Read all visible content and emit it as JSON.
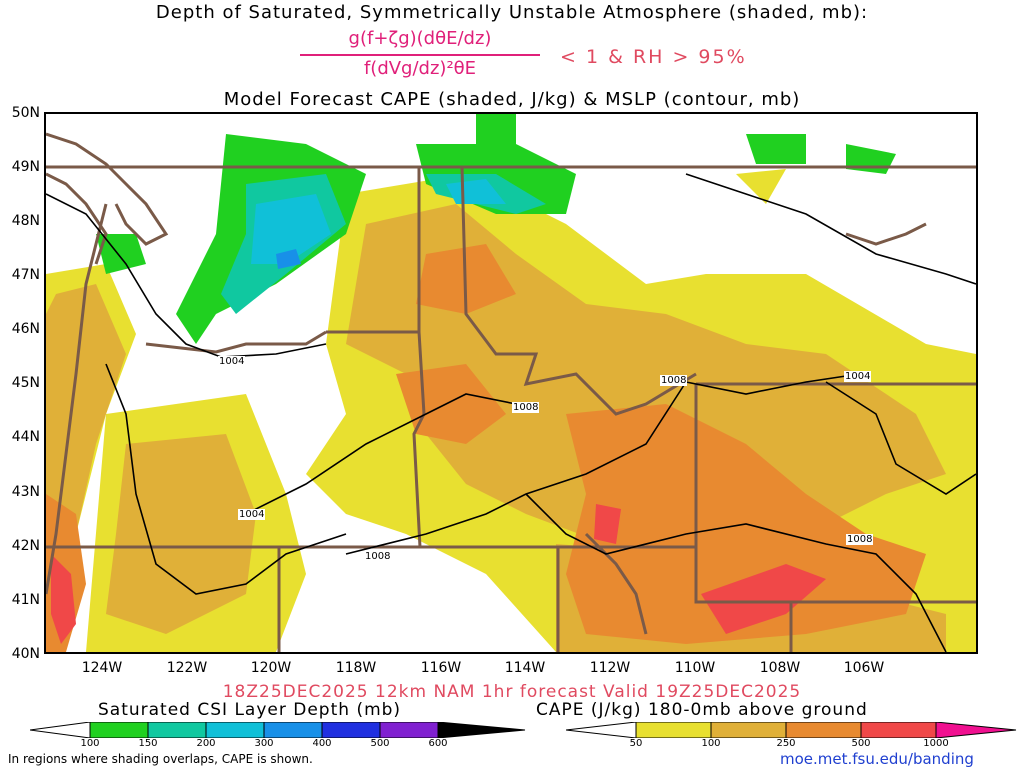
{
  "header": {
    "line1": "Depth of Saturated, Symmetrically Unstable Atmosphere (shaded, mb):",
    "fraction_numerator": "g(f+ζg)(dθE/dz)",
    "fraction_denominator": "f(dVg/dz)²θE",
    "condition": "< 1 & RH > 95%",
    "line3": "Model Forecast CAPE (shaded, J/kg) & MSLP (contour, mb)"
  },
  "map": {
    "lat_labels": [
      "50N",
      "49N",
      "48N",
      "47N",
      "46N",
      "45N",
      "44N",
      "43N",
      "42N",
      "41N",
      "40N"
    ],
    "lon_labels": [
      "124W",
      "122W",
      "120W",
      "118W",
      "116W",
      "114W",
      "112W",
      "110W",
      "108W",
      "106W"
    ],
    "pressure_labels": [
      "1004",
      "1008",
      "1008",
      "1004",
      "1008",
      "1008",
      "1004"
    ],
    "colors": {
      "cape_50": "#e8e030",
      "cape_100": "#e0b038",
      "cape_250": "#e88a30",
      "cape_500": "#f04848",
      "csi_100": "#20d020",
      "csi_150": "#10c8a0",
      "csi_200": "#10c0d8",
      "csi_300": "#1890e8",
      "border": "#7a5a48",
      "isobar": "#000000"
    }
  },
  "footer": {
    "forecast_line": "18Z25DEC2025 12km NAM 1hr forecast Valid 19Z25DEC2025",
    "csi_title": "Saturated CSI Layer Depth (mb)",
    "cape_title": "CAPE (J/kg) 180-0mb above ground",
    "csi_ticks": [
      "100",
      "150",
      "200",
      "300",
      "400",
      "500",
      "600"
    ],
    "cape_ticks": [
      "50",
      "100",
      "250",
      "500",
      "1000"
    ],
    "note": "In regions where shading overlaps, CAPE is shown.",
    "credit": "moe.met.fsu.edu/banding"
  }
}
